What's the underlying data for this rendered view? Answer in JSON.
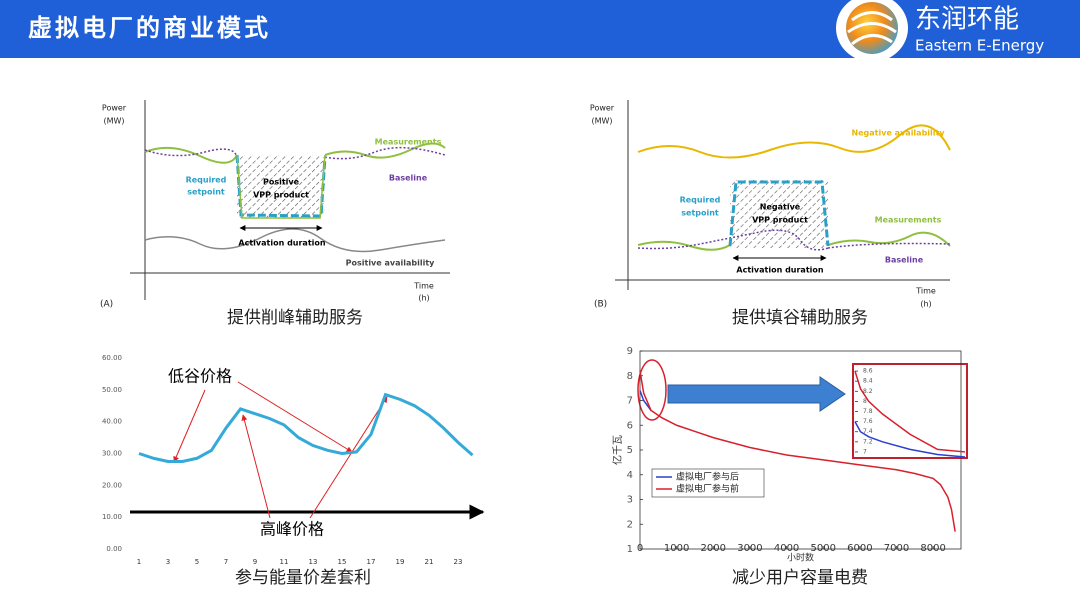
{
  "header": {
    "title": "虚拟电厂的商业模式",
    "logo_cn": "东润环能",
    "logo_en": "Eastern E-Energy"
  },
  "diagrams": [
    {
      "panel": "(A)",
      "caption": "提供削峰辅助服务",
      "y_label": [
        "Power",
        "(MW)"
      ],
      "x_label": [
        "Time",
        "(h)"
      ],
      "labels": [
        "Measurements",
        "Baseline",
        "Required",
        "setpoint",
        "Positive",
        "VPP product",
        "Activation duration",
        "Positive availability"
      ]
    },
    {
      "panel": "(B)",
      "caption": "提供填谷辅助服务",
      "y_label": [
        "Power",
        "(MW)"
      ],
      "x_label": [
        "Time",
        "(h)"
      ],
      "labels": [
        "Negative availability",
        "Required",
        "setpoint",
        "Negative",
        "VPP product",
        "Measurements",
        "Activation duration",
        "Baseline"
      ]
    }
  ],
  "chart_data": [
    {
      "type": "line",
      "caption": "参与能量价差套利",
      "annotations": [
        "低谷价格",
        "高峰价格"
      ],
      "color": "#35a9d8",
      "x": [
        1,
        2,
        3,
        4,
        5,
        6,
        7,
        8,
        9,
        10,
        11,
        12,
        13,
        14,
        15,
        16,
        17,
        18,
        19,
        20,
        21,
        22,
        23,
        24
      ],
      "values": [
        30,
        28.5,
        27.5,
        27.5,
        28.5,
        31,
        38,
        44,
        42.5,
        41,
        39,
        35,
        32.5,
        31,
        30,
        30.5,
        36,
        48.5,
        47,
        45,
        42,
        38,
        33.5,
        29.5
      ],
      "xlim": [
        0,
        25
      ],
      "xticks": [
        1,
        3,
        5,
        7,
        9,
        11,
        13,
        15,
        17,
        19,
        21,
        23
      ],
      "ylim": [
        0,
        60
      ],
      "yticks": [
        {
          "value": 0,
          "label": "0.00"
        },
        {
          "value": 10,
          "label": "10.00"
        },
        {
          "value": 20,
          "label": "20.00"
        },
        {
          "value": 30,
          "label": "30.00"
        },
        {
          "value": 40,
          "label": "40.00"
        },
        {
          "value": 50,
          "label": "50.00"
        },
        {
          "value": 60,
          "label": "60.00"
        }
      ]
    },
    {
      "type": "line",
      "caption": "减少用户容量电费",
      "x_label": "小时数",
      "y_label": "亿千瓦",
      "legend": "lower left",
      "xlim": [
        0,
        8760
      ],
      "xticks": [
        0,
        1000,
        2000,
        3000,
        4000,
        5000,
        6000,
        7000,
        8000
      ],
      "ylim": [
        1,
        9
      ],
      "yticks": [
        1,
        2,
        3,
        4,
        5,
        6,
        7,
        8,
        9
      ],
      "series": [
        {
          "name": "虚拟电厂参与后",
          "color": "#2c3fd0",
          "x": [
            0,
            100,
            200,
            300
          ],
          "values": [
            7.4,
            7.0,
            6.8,
            6.6
          ]
        },
        {
          "name": "虚拟电厂参与前",
          "color": "#d8202c",
          "x": [
            0,
            100,
            300,
            600,
            1000,
            1500,
            2000,
            3000,
            4000,
            5000,
            6000,
            7000,
            7500,
            8000,
            8200,
            8400,
            8500,
            8600
          ],
          "values": [
            8.2,
            7.3,
            6.6,
            6.3,
            6.0,
            5.75,
            5.5,
            5.1,
            4.8,
            4.6,
            4.4,
            4.2,
            4.05,
            3.85,
            3.6,
            3.1,
            2.6,
            1.7
          ]
        }
      ]
    },
    {
      "type": "line",
      "xlim": [
        0,
        400
      ],
      "ylim": [
        6.88,
        8.74
      ],
      "yticks": [
        7,
        7.2,
        7.4,
        7.6,
        7.8,
        8,
        8.2,
        8.4,
        8.6
      ],
      "series": [
        {
          "color": "#2c3fd0",
          "x": [
            0,
            20,
            50,
            100,
            200,
            300,
            400
          ],
          "values": [
            7.6,
            7.4,
            7.3,
            7.2,
            7.05,
            6.95,
            6.9
          ]
        },
        {
          "color": "#d8202c",
          "x": [
            0,
            20,
            50,
            100,
            200,
            300,
            400
          ],
          "values": [
            8.6,
            8.25,
            8.0,
            7.75,
            7.35,
            7.05,
            7.0
          ]
        }
      ]
    }
  ]
}
